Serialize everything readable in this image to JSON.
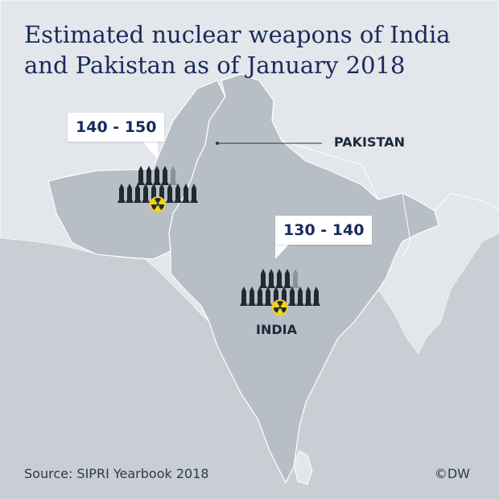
{
  "title": "Estimated nuclear weapons of India and Pakistan as of January 2018",
  "countries": [
    {
      "name": "PAKISTAN",
      "warheads_range": "140 - 150",
      "warheads_min": 140,
      "warheads_max": 150
    },
    {
      "name": "INDIA",
      "warheads_range": "130 - 140",
      "warheads_min": 130,
      "warheads_max": 140
    }
  ],
  "source": "Source: SIPRI Yearbook 2018",
  "credit": "©DW",
  "icons": {
    "warhead": "missile-icon",
    "radiation": "radiation-icon"
  },
  "colors": {
    "sea": "#c9ced4",
    "land": "#e3e6ea",
    "highlight": "#b8bec6",
    "title": "#1a2a5c",
    "icon_dark": "#1f2a33",
    "icon_light": "#8a929a",
    "radiation": "#f2d31b"
  }
}
